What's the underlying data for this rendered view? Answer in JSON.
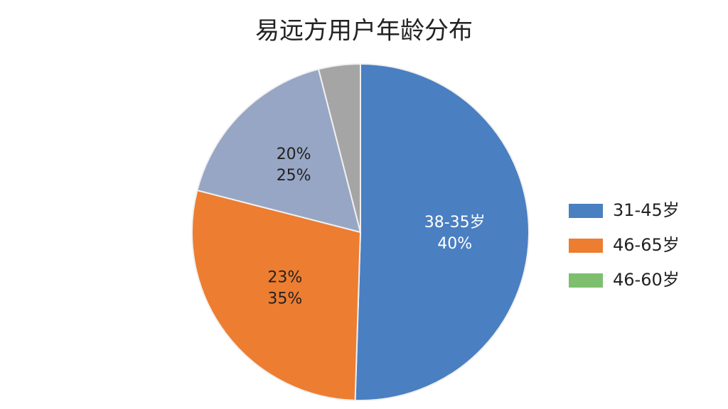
{
  "chart_data": {
    "type": "pie",
    "title": "易远方用户年龄分布",
    "values": [
      50.5,
      28.5,
      17,
      4
    ],
    "colors": [
      "#4a7fc1",
      "#ed7d31",
      "#97a6c4",
      "#a5a5a5"
    ],
    "slice_labels": [
      [
        "38-35岁",
        "40%"
      ],
      [
        "23%",
        "35%"
      ],
      [
        "20%",
        "25%"
      ],
      null
    ],
    "slice_label_colors": [
      "#ffffff",
      "#222222",
      "#222222",
      "#222222"
    ],
    "legend": [
      {
        "name": "31-45岁",
        "color": "#4a7fc1"
      },
      {
        "name": "46-65岁",
        "color": "#ed7d31"
      },
      {
        "name": "46-60岁",
        "color": "#7dbf6e"
      }
    ],
    "legend_position": "right"
  }
}
